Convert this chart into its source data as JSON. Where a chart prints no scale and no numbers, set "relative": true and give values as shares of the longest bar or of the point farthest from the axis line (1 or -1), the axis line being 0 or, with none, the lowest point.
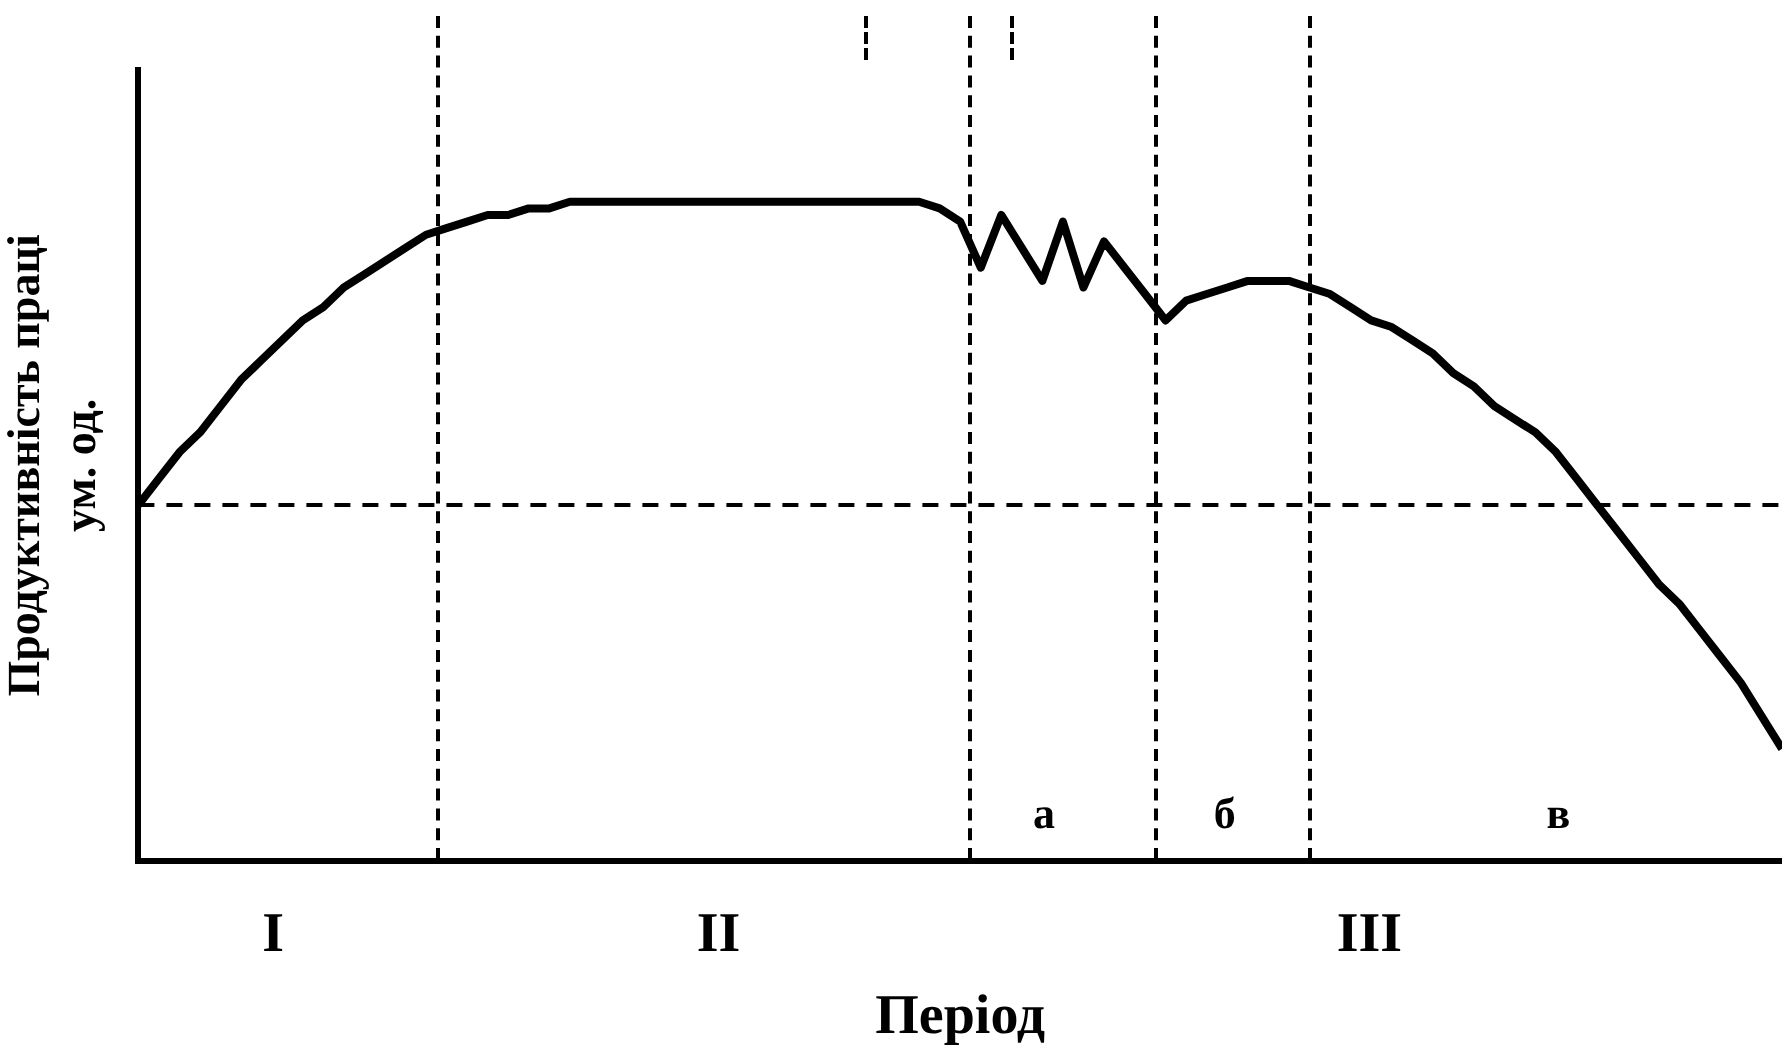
{
  "chart_data": {
    "type": "line",
    "relative": true,
    "xlabel": "Період",
    "ylabel": "Продуктивність праці\nум. од.",
    "categories": [
      null,
      null,
      null,
      null,
      null,
      null,
      null,
      null,
      null,
      null,
      null,
      null,
      null,
      null,
      null,
      null,
      null,
      null,
      null,
      null,
      null,
      null,
      null,
      null,
      null,
      null,
      null,
      null,
      null,
      null,
      null,
      null,
      null,
      null,
      null,
      null,
      null,
      null,
      null,
      null,
      null,
      null,
      null,
      null,
      null,
      null,
      null,
      null,
      null,
      null,
      null,
      null,
      null,
      null,
      null,
      null,
      null,
      null,
      null,
      null,
      null,
      null,
      null,
      null,
      null,
      null,
      null,
      null,
      null,
      null,
      null,
      null,
      null,
      null,
      null,
      null,
      null,
      null,
      null,
      null,
      null
    ],
    "series": [
      {
        "color": "#000000",
        "values": [
          0.54,
          0.58,
          0.62,
          0.65,
          0.69,
          0.73,
          0.76,
          0.79,
          0.82,
          0.84,
          0.87,
          0.89,
          0.91,
          0.93,
          0.95,
          0.96,
          0.97,
          0.98,
          0.98,
          0.99,
          0.99,
          1,
          1,
          1,
          1,
          1,
          1,
          1,
          1,
          1,
          1,
          1,
          1,
          1,
          1,
          1,
          1,
          1,
          1,
          0.99,
          0.97,
          0.9,
          0.98,
          0.93,
          0.88,
          0.97,
          0.87,
          0.94,
          0.9,
          0.86,
          0.82,
          0.85,
          0.86,
          0.87,
          0.88,
          0.88,
          0.88,
          0.87,
          0.86,
          0.84,
          0.82,
          0.81,
          0.79,
          0.77,
          0.74,
          0.72,
          0.69,
          0.67,
          0.65,
          0.62,
          0.58,
          0.54,
          0.5,
          0.46,
          0.42,
          0.39,
          0.35,
          0.31,
          0.27,
          0.22,
          0.17
        ]
      }
    ],
    "ref_lines": [
      {
        "axis": "y",
        "value": 0.54,
        "color": "#000000",
        "line_style": "dashed"
      }
    ],
    "annotations": [
      "I",
      "II",
      "III",
      "а",
      "б",
      "в"
    ],
    "grid": false,
    "legend": false,
    "marker": "none",
    "line_style": "solid"
  }
}
